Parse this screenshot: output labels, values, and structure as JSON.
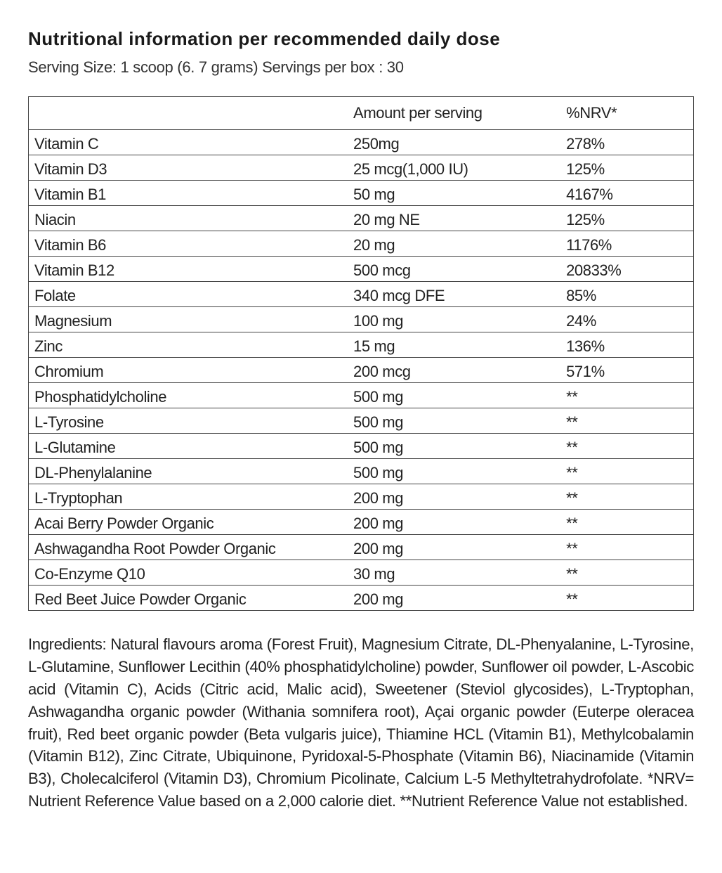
{
  "title": "Nutritional information per recommended daily dose",
  "serving": "Serving Size: 1 scoop (6. 7 grams) Servings per box : 30",
  "columns": {
    "name": "",
    "amount": "Amount per serving",
    "nrv": "%NRV*"
  },
  "rows": [
    {
      "name": "Vitamin C",
      "amount": "250mg",
      "nrv": "278%"
    },
    {
      "name": "Vitamin D3",
      "amount": "25 mcg(1,000 IU)",
      "nrv": "125%"
    },
    {
      "name": "Vitamin B1",
      "amount": "50 mg",
      "nrv": "4167%"
    },
    {
      "name": "Niacin",
      "amount": "20 mg NE",
      "nrv": "125%"
    },
    {
      "name": "Vitamin B6",
      "amount": "20 mg",
      "nrv": "1176%"
    },
    {
      "name": "Vitamin B12",
      "amount": "500 mcg",
      "nrv": "20833%"
    },
    {
      "name": "Folate",
      "amount": "340 mcg DFE",
      "nrv": "85%"
    },
    {
      "name": "Magnesium",
      "amount": "100 mg",
      "nrv": "24%"
    },
    {
      "name": "Zinc",
      "amount": "15 mg",
      "nrv": "136%"
    },
    {
      "name": "Chromium",
      "amount": "200 mcg",
      "nrv": "571%"
    },
    {
      "name": "Phosphatidylcholine",
      "amount": "500 mg",
      "nrv": "**"
    },
    {
      "name": "L-Tyrosine",
      "amount": "500 mg",
      "nrv": "**"
    },
    {
      "name": "L-Glutamine",
      "amount": "500 mg",
      "nrv": "**"
    },
    {
      "name": "DL-Phenylalanine",
      "amount": "500 mg",
      "nrv": "**"
    },
    {
      "name": "L-Tryptophan",
      "amount": "200 mg",
      "nrv": "**"
    },
    {
      "name": "Acai Berry Powder Organic",
      "amount": "200 mg",
      "nrv": "**"
    },
    {
      "name": "Ashwagandha Root Powder Organic",
      "amount": "200 mg",
      "nrv": "**"
    },
    {
      "name": "Co-Enzyme Q10",
      "amount": "30 mg",
      "nrv": "**"
    },
    {
      "name": "Red Beet Juice Powder Organic",
      "amount": "200 mg",
      "nrv": "**"
    }
  ],
  "ingredients": "Ingredients: Natural flavours aroma (Forest Fruit), Magnesium Citrate, DL-Phenyalanine, L-Tyrosine, L-Glutamine, Sunflower Lecithin (40% phosphatidylcholine) powder, Sunflower oil powder, L-Ascobic acid (Vitamin C), Acids (Citric acid, Malic acid), Sweetener (Steviol glycosides), L-Tryptophan,  Ashwagandha organic powder (Withania somnifera root), Açai organic powder (Euterpe oleracea fruit), Red beet organic powder (Beta vulgaris juice), Thiamine HCL (Vitamin B1), Methylcobalamin (Vitamin B12), Zinc Citrate, Ubiquinone, Pyridoxal-5-Phosphate (Vitamin B6), Niacinamide (Vitamin B3),  Cholecalciferol (Vitamin D3), Chromium Picolinate, Calcium L-5 Methyltetrahydrofolate. *NRV= Nutrient Reference Value based on a 2,000 calorie diet. **Nutrient Reference Value not established."
}
